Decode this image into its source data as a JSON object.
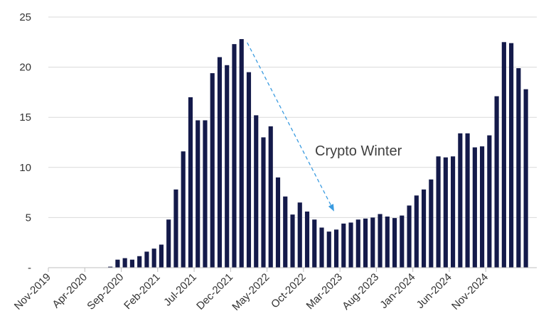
{
  "chart_data": {
    "type": "bar",
    "title": "",
    "xlabel": "",
    "ylabel": "",
    "ylim": [
      0,
      25
    ],
    "yticks": [
      "-",
      "5",
      "10",
      "15",
      "20",
      "25"
    ],
    "grid": "horizontal",
    "bar_color": "#141a4a",
    "categories": [
      "Nov-2019",
      "Dec-2019",
      "Jan-2020",
      "Feb-2020",
      "Mar-2020",
      "Apr-2020",
      "May-2020",
      "Jun-2020",
      "Jul-2020",
      "Aug-2020",
      "Sep-2020",
      "Oct-2020",
      "Nov-2020",
      "Dec-2020",
      "Jan-2021",
      "Feb-2021",
      "Mar-2021",
      "Apr-2021",
      "May-2021",
      "Jun-2021",
      "Jul-2021",
      "Aug-2021",
      "Sep-2021",
      "Oct-2021",
      "Nov-2021",
      "Dec-2021",
      "Jan-2022",
      "Feb-2022",
      "Mar-2022",
      "Apr-2022",
      "May-2022",
      "Jun-2022",
      "Jul-2022",
      "Aug-2022",
      "Sep-2022",
      "Oct-2022",
      "Nov-2022",
      "Dec-2022",
      "Jan-2023",
      "Feb-2023",
      "Mar-2023",
      "Apr-2023",
      "May-2023",
      "Jun-2023",
      "Jul-2023",
      "Aug-2023",
      "Sep-2023",
      "Oct-2023",
      "Nov-2023",
      "Dec-2023",
      "Jan-2024",
      "Feb-2024",
      "Mar-2024",
      "Apr-2024",
      "May-2024",
      "Jun-2024",
      "Jul-2024",
      "Aug-2024",
      "Sep-2024",
      "Oct-2024",
      "Nov-2024",
      "Dec-2024",
      "Jan-2025",
      "Feb-2025",
      "Mar-2025",
      "Apr-2025",
      "May-2025"
    ],
    "values": [
      0,
      0,
      0,
      0,
      0,
      0,
      0,
      0,
      0.1,
      0.8,
      0.95,
      0.8,
      1.15,
      1.6,
      1.9,
      2.3,
      4.8,
      7.8,
      11.6,
      17.0,
      14.7,
      14.7,
      19.4,
      21.0,
      20.2,
      22.3,
      22.8,
      19.5,
      15.2,
      13.0,
      14.1,
      9.0,
      7.1,
      5.3,
      6.5,
      5.6,
      4.8,
      4.0,
      3.6,
      3.8,
      4.4,
      4.5,
      4.8,
      4.9,
      5.0,
      5.35,
      5.1,
      4.95,
      5.2,
      6.2,
      7.2,
      7.8,
      8.8,
      11.1,
      11.0,
      11.1,
      13.4,
      13.4,
      12.0,
      12.1,
      13.2,
      17.1,
      22.5,
      22.4,
      19.9,
      17.8,
      null
    ],
    "xtick_labels": [
      "Nov-2019",
      "Apr-2020",
      "Sep-2020",
      "Feb-2021",
      "Jul-2021",
      "Dec-2021",
      "May-2022",
      "Oct-2022",
      "Mar-2023",
      "Aug-2023",
      "Jan-2024",
      "Jun-2024",
      "Nov-2024"
    ],
    "annotations": [
      {
        "text": "Crypto Winter",
        "arrow_from": "Jan-2022",
        "arrow_to": "Feb-2023",
        "arrow_color": "#3a9be0"
      }
    ]
  }
}
